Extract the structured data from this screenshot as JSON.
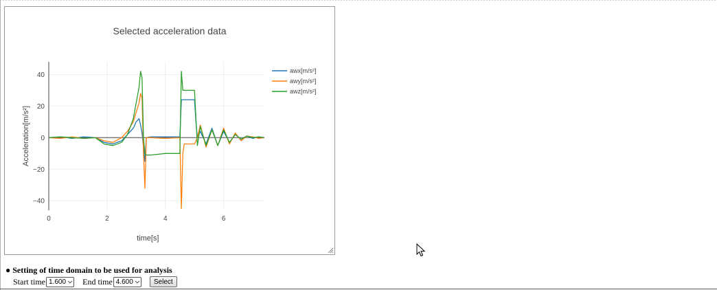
{
  "chart_data": {
    "type": "line",
    "title": "Selected acceleration data",
    "xlabel": "time[s]",
    "ylabel": "Acceleration[m/s²]",
    "xlim": [
      0,
      7.4
    ],
    "ylim": [
      -46,
      48
    ],
    "xticks": [
      0,
      2,
      4,
      6
    ],
    "yticks": [
      -40,
      -20,
      0,
      20,
      40
    ],
    "grid": true,
    "legend_position": "top-right",
    "series": [
      {
        "name": "awx[m/s²]",
        "color": "#1f77b4",
        "x": [
          0,
          0.4,
          0.8,
          1.2,
          1.6,
          1.9,
          2.2,
          2.5,
          2.7,
          2.9,
          3.0,
          3.1,
          3.15,
          3.2,
          3.25,
          3.3,
          3.35,
          3.5,
          4.0,
          4.5,
          4.55,
          4.6,
          4.65,
          4.8,
          5.0,
          5.05,
          5.1,
          5.2,
          5.4,
          5.6,
          5.8,
          6.0,
          6.2,
          6.4,
          6.6,
          6.8,
          7.0,
          7.2,
          7.4
        ],
        "y": [
          0,
          0.5,
          -0.5,
          0.5,
          0,
          -3,
          -4,
          -2,
          2,
          6,
          10,
          12,
          8,
          3,
          -6,
          -15,
          0,
          0.5,
          0.5,
          0.5,
          24,
          24,
          24,
          24,
          24,
          10,
          0,
          4,
          -4,
          6,
          -5,
          4,
          -3,
          2,
          -1,
          1,
          -0.5,
          0.5,
          0
        ]
      },
      {
        "name": "awy[m/s²]",
        "color": "#ff7f0e",
        "x": [
          0,
          0.4,
          0.8,
          1.2,
          1.6,
          1.9,
          2.2,
          2.5,
          2.7,
          2.9,
          3.0,
          3.1,
          3.15,
          3.2,
          3.25,
          3.3,
          3.35,
          3.5,
          4.0,
          4.5,
          4.55,
          4.6,
          4.65,
          4.8,
          5.0,
          5.05,
          5.1,
          5.2,
          5.4,
          5.6,
          5.8,
          6.0,
          6.2,
          6.4,
          6.6,
          6.8,
          7.0,
          7.2,
          7.4
        ],
        "y": [
          0,
          -0.5,
          0.5,
          -0.5,
          0,
          -2,
          -3,
          0,
          4,
          10,
          16,
          22,
          28,
          25,
          -10,
          -32,
          0,
          0,
          -0.5,
          0,
          -45,
          -10,
          -4,
          -4,
          -4,
          -2,
          0,
          8,
          -6,
          5,
          -5,
          6,
          -4,
          3,
          -2,
          1,
          0.5,
          -0.5,
          0
        ]
      },
      {
        "name": "awz[m/s²]",
        "color": "#2ca02c",
        "x": [
          0,
          0.4,
          0.8,
          1.2,
          1.6,
          1.9,
          2.2,
          2.5,
          2.7,
          2.9,
          3.0,
          3.1,
          3.15,
          3.2,
          3.25,
          3.3,
          3.35,
          3.5,
          4.0,
          4.5,
          4.55,
          4.6,
          4.65,
          4.8,
          5.0,
          5.05,
          5.1,
          5.2,
          5.4,
          5.6,
          5.8,
          6.0,
          6.2,
          6.4,
          6.6,
          6.8,
          7.0,
          7.2,
          7.4
        ],
        "y": [
          0,
          0.5,
          0,
          -0.5,
          0,
          -4,
          -5,
          -3,
          2,
          12,
          22,
          32,
          42,
          38,
          0,
          -10,
          -11,
          -11,
          -10,
          -10,
          42,
          30,
          30,
          30,
          30,
          12,
          -5,
          7,
          -5,
          5,
          -5,
          5,
          -3,
          2,
          -1,
          1,
          0,
          0.5,
          0
        ]
      }
    ]
  },
  "settings": {
    "bullet": "●",
    "title": "Setting of time domain to be used for analysis",
    "start_label": "Start time",
    "start_value": "1.600",
    "end_label": "End time",
    "end_value": "4.600",
    "select_label": "Select"
  },
  "icons": {
    "dropdown": "chevron-down-icon",
    "cursor": "mouse-pointer-icon",
    "resize": "resize-grip-icon"
  }
}
